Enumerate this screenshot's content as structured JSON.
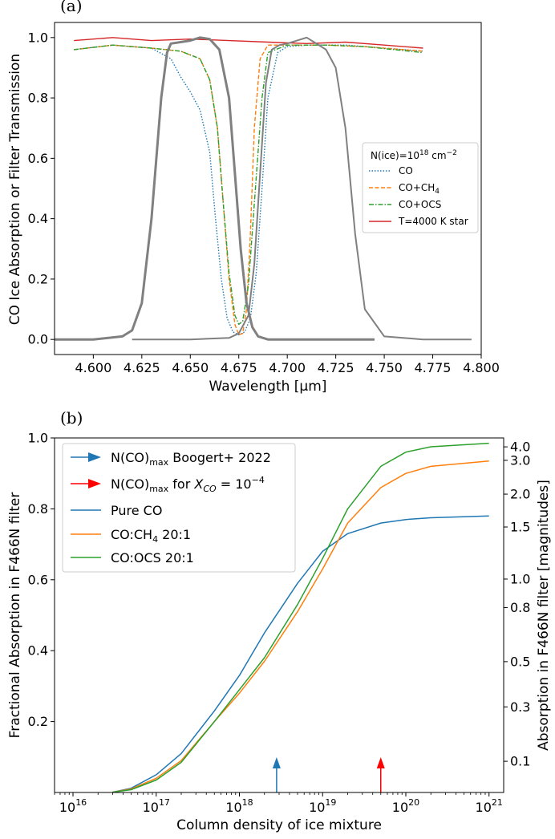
{
  "chart_data": [
    {
      "panel_label": "(a)",
      "type": "line",
      "xlabel": "Wavelength [μm]",
      "ylabel": "CO Ice Absorption or Filter Transmission",
      "xlim": [
        4.58,
        4.8
      ],
      "ylim": [
        -0.05,
        1.05
      ],
      "xticks": [
        "4.600",
        "4.625",
        "4.650",
        "4.675",
        "4.700",
        "4.725",
        "4.750",
        "4.775",
        "4.800"
      ],
      "yticks": [
        "0.0",
        "0.2",
        "0.4",
        "0.6",
        "0.8",
        "1.0"
      ],
      "legend_title": "N(ice)=10",
      "legend_title_exp": "18",
      "legend_title_unit": "cm",
      "legend_title_unit_exp": "−2",
      "legend_placement": "center-right",
      "series": [
        {
          "name": "CO",
          "color": "#1f77b4",
          "style": "dotted",
          "x": [
            4.59,
            4.61,
            4.63,
            4.64,
            4.645,
            4.65,
            4.655,
            4.66,
            4.663,
            4.666,
            4.669,
            4.672,
            4.675,
            4.678,
            4.681,
            4.684,
            4.687,
            4.69,
            4.695,
            4.7,
            4.71,
            4.73,
            4.75,
            4.77
          ],
          "y": [
            0.96,
            0.975,
            0.965,
            0.93,
            0.87,
            0.82,
            0.76,
            0.62,
            0.4,
            0.2,
            0.07,
            0.025,
            0.015,
            0.025,
            0.07,
            0.22,
            0.5,
            0.8,
            0.95,
            0.97,
            0.975,
            0.975,
            0.965,
            0.955
          ]
        },
        {
          "name": "CO+CH",
          "name_sub": "4",
          "color": "#ff7f0e",
          "style": "dashed",
          "x": [
            4.59,
            4.61,
            4.63,
            4.645,
            4.655,
            4.66,
            4.664,
            4.667,
            4.67,
            4.673,
            4.675,
            4.677,
            4.679,
            4.681,
            4.683,
            4.686,
            4.69,
            4.7,
            4.72,
            4.74,
            4.77
          ],
          "y": [
            0.96,
            0.975,
            0.965,
            0.955,
            0.93,
            0.86,
            0.7,
            0.45,
            0.2,
            0.05,
            0.015,
            0.02,
            0.1,
            0.35,
            0.7,
            0.93,
            0.975,
            0.975,
            0.975,
            0.97,
            0.955
          ]
        },
        {
          "name": "CO+OCS",
          "color": "#2ca02c",
          "style": "dashdot",
          "x": [
            4.59,
            4.61,
            4.63,
            4.645,
            4.655,
            4.66,
            4.664,
            4.667,
            4.67,
            4.673,
            4.675,
            4.677,
            4.68,
            4.683,
            4.687,
            4.69,
            4.7,
            4.72,
            4.74,
            4.77
          ],
          "y": [
            0.96,
            0.975,
            0.965,
            0.955,
            0.93,
            0.86,
            0.7,
            0.45,
            0.22,
            0.08,
            0.05,
            0.06,
            0.18,
            0.45,
            0.8,
            0.95,
            0.975,
            0.975,
            0.97,
            0.95
          ]
        },
        {
          "name": "T=4000 K star",
          "color": "#d62728",
          "style": "solid",
          "x": [
            4.59,
            4.61,
            4.63,
            4.65,
            4.67,
            4.69,
            4.71,
            4.73,
            4.75,
            4.77
          ],
          "y": [
            0.99,
            1.0,
            0.99,
            0.995,
            0.99,
            0.985,
            0.98,
            0.985,
            0.975,
            0.965
          ]
        },
        {
          "color": "#808080",
          "style": "filter",
          "width": 3,
          "x": [
            4.58,
            4.6,
            4.615,
            4.62,
            4.625,
            4.63,
            4.635,
            4.638,
            4.64,
            4.645,
            4.65,
            4.655,
            4.66,
            4.665,
            4.67,
            4.673,
            4.676,
            4.679,
            4.682,
            4.685,
            4.69,
            4.7,
            4.72,
            4.745
          ],
          "y": [
            0.0,
            0.0,
            0.01,
            0.03,
            0.12,
            0.4,
            0.8,
            0.95,
            0.98,
            0.985,
            0.99,
            1.0,
            0.995,
            0.96,
            0.8,
            0.55,
            0.3,
            0.12,
            0.04,
            0.01,
            0.0,
            0.0,
            0.0,
            0.0
          ]
        },
        {
          "color": "#808080",
          "style": "filter",
          "width": 2,
          "x": [
            4.62,
            4.65,
            4.67,
            4.675,
            4.68,
            4.683,
            4.686,
            4.689,
            4.692,
            4.696,
            4.7,
            4.705,
            4.71,
            4.715,
            4.72,
            4.725,
            4.73,
            4.735,
            4.74,
            4.75,
            4.77,
            4.795
          ],
          "y": [
            0.0,
            0.0,
            0.005,
            0.02,
            0.08,
            0.25,
            0.55,
            0.85,
            0.96,
            0.975,
            0.98,
            0.99,
            1.0,
            0.98,
            0.96,
            0.9,
            0.7,
            0.35,
            0.1,
            0.01,
            0.0,
            0.0
          ]
        }
      ]
    },
    {
      "panel_label": "(b)",
      "type": "line",
      "xlabel": "Column density of ice mixture",
      "ylabel": "Fractional Absorption in F466N filter",
      "ylabel_right": "Absorption in F466N filter [magnitudes]",
      "x_scale": "log",
      "xlim": [
        6000000000000000.0,
        1.5e+21
      ],
      "ylim": [
        0,
        1.0
      ],
      "xticks": [
        {
          "base": "10",
          "exp": "16",
          "value": 1e+16
        },
        {
          "base": "10",
          "exp": "17",
          "value": 1e+17
        },
        {
          "base": "10",
          "exp": "18",
          "value": 1e+18
        },
        {
          "base": "10",
          "exp": "19",
          "value": 1e+19
        },
        {
          "base": "10",
          "exp": "20",
          "value": 1e+20
        },
        {
          "base": "10",
          "exp": "21",
          "value": 1e+21
        }
      ],
      "yticks": [
        "0.2",
        "0.4",
        "0.6",
        "0.8",
        "1.0"
      ],
      "right_ticks": [
        "0.1",
        "0.3",
        "0.5",
        "0.8",
        "1.0",
        "1.5",
        "2.0",
        "3.0",
        "4.0"
      ],
      "right_tick_values": [
        0.1,
        0.3,
        0.5,
        0.8,
        1.0,
        1.5,
        2.0,
        3.0,
        4.0
      ],
      "legend_placement": "upper-left",
      "arrows": [
        {
          "name": "N(CO)",
          "name_sub": "max",
          "name_rest": " Boogert+ 2022",
          "color": "#1f77b4",
          "x": 2.8e+18
        },
        {
          "name": "N(CO)",
          "name_sub": "max",
          "name_rest": " for ",
          "name_math": "X",
          "name_math_sub": "CO",
          "name_eq": " = 10",
          "name_eq_exp": "−4",
          "color": "#ff0000",
          "x": 5e+19
        }
      ],
      "series": [
        {
          "name": "Pure CO",
          "color": "#1f77b4",
          "x": [
            3e+16,
            5e+16,
            1e+17,
            2e+17,
            5e+17,
            1e+18,
            2e+18,
            5e+18,
            1e+19,
            2e+19,
            5e+19,
            1e+20,
            2e+20,
            1e+21
          ],
          "y": [
            0.001,
            0.012,
            0.05,
            0.11,
            0.23,
            0.33,
            0.45,
            0.59,
            0.68,
            0.73,
            0.76,
            0.77,
            0.775,
            0.78
          ]
        },
        {
          "name": "CO:CH",
          "name_sub": "4",
          "name_rest": " 20:1",
          "color": "#ff7f0e",
          "x": [
            3e+16,
            5e+16,
            1e+17,
            2e+17,
            5e+17,
            1e+18,
            2e+18,
            5e+18,
            1e+19,
            2e+19,
            5e+19,
            1e+20,
            2e+20,
            1e+21
          ],
          "y": [
            0.001,
            0.01,
            0.04,
            0.09,
            0.2,
            0.28,
            0.37,
            0.51,
            0.63,
            0.76,
            0.86,
            0.9,
            0.92,
            0.935
          ]
        },
        {
          "name": "CO:OCS 20:1",
          "color": "#2ca02c",
          "x": [
            3e+16,
            5e+16,
            1e+17,
            2e+17,
            5e+17,
            1e+18,
            2e+18,
            5e+18,
            1e+19,
            2e+19,
            5e+19,
            1e+20,
            2e+20,
            1e+21
          ],
          "y": [
            0.001,
            0.008,
            0.035,
            0.085,
            0.2,
            0.29,
            0.38,
            0.53,
            0.66,
            0.8,
            0.92,
            0.96,
            0.975,
            0.985
          ]
        }
      ]
    }
  ]
}
